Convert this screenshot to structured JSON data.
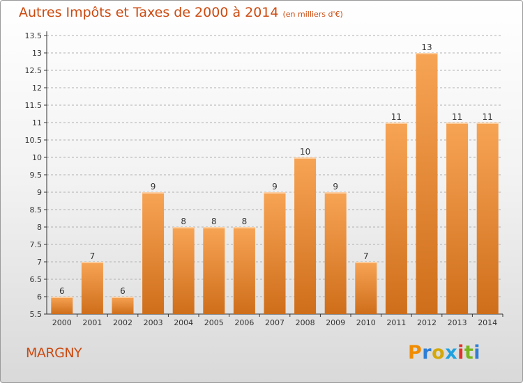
{
  "header": {
    "title": "Autres Impôts et Taxes de 2000 à 2014",
    "subtitle": "(en milliers d'€)"
  },
  "footer": {
    "place": "MARGNY",
    "brand_letters": [
      "P",
      "r",
      "o",
      "x",
      "i",
      "t",
      "i"
    ],
    "brand_colors": [
      "#f08c00",
      "#2e7ed6",
      "#d4a80a",
      "#1fa2df",
      "#e0312a",
      "#7ab51d",
      "#2e7ed6"
    ]
  },
  "colors": {
    "accent": "#cc4a10",
    "bar_top": "#f7a455",
    "bar_bottom": "#cf6e1a",
    "grid": "#b0b0b0",
    "axis": "#333333"
  },
  "chart_data": {
    "type": "bar",
    "categories": [
      "2000",
      "2001",
      "2002",
      "2003",
      "2004",
      "2005",
      "2006",
      "2007",
      "2008",
      "2009",
      "2010",
      "2011",
      "2012",
      "2013",
      "2014"
    ],
    "values": [
      6,
      7,
      6,
      9,
      8,
      8,
      8,
      9,
      10,
      9,
      7,
      11,
      13,
      11,
      11
    ],
    "data_labels": [
      "6",
      "7",
      "6",
      "9",
      "8",
      "8",
      "8",
      "9",
      "10",
      "9",
      "7",
      "11",
      "13",
      "11",
      "11"
    ],
    "yticks": [
      "5.5",
      "6",
      "6.5",
      "7",
      "7.5",
      "8",
      "8.5",
      "9",
      "9.5",
      "10",
      "10.5",
      "11",
      "11.5",
      "12",
      "12.5",
      "13",
      "13.5"
    ],
    "ylim": [
      5.5,
      13.5
    ],
    "grid": true,
    "grid_style": "dashed-horizontal",
    "legend": "none"
  }
}
